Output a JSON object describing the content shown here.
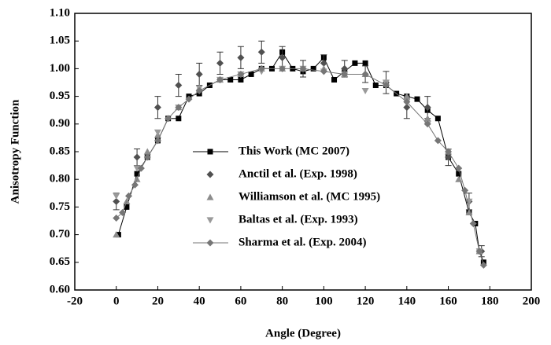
{
  "chart_data": {
    "type": "scatter",
    "x_label": "Angle (Degree)",
    "y_label": "Anisotropy Function",
    "xlim": [
      -20,
      200
    ],
    "xticks": [
      -20,
      0,
      20,
      40,
      60,
      80,
      100,
      120,
      140,
      160,
      180,
      200
    ],
    "ylim": [
      0.6,
      1.1
    ],
    "yticks": [
      {
        "value": 0.6,
        "label": "0.60"
      },
      {
        "value": 0.65,
        "label": "0.65"
      },
      {
        "value": 0.7,
        "label": "0.70"
      },
      {
        "value": 0.75,
        "label": "0.75"
      },
      {
        "value": 0.8,
        "label": "0.80"
      },
      {
        "value": 0.85,
        "label": "0.85"
      },
      {
        "value": 0.9,
        "label": "0.90"
      },
      {
        "value": 0.95,
        "label": "0.95"
      },
      {
        "value": 1.0,
        "label": "1.00"
      },
      {
        "value": 1.05,
        "label": "1.05"
      },
      {
        "value": 1.1,
        "label": "1.10"
      }
    ],
    "legend": "center",
    "series": [
      {
        "name": "This Work (MC 2007)",
        "color": "#000000",
        "marker": "square",
        "line": true,
        "x": [
          1,
          5,
          10,
          15,
          20,
          25,
          30,
          35,
          40,
          45,
          50,
          55,
          60,
          65,
          70,
          75,
          80,
          85,
          90,
          95,
          100,
          105,
          110,
          115,
          120,
          125,
          130,
          135,
          140,
          145,
          150,
          155,
          160,
          165,
          170,
          173,
          175,
          177
        ],
        "values": [
          0.7,
          0.75,
          0.81,
          0.84,
          0.87,
          0.91,
          0.91,
          0.95,
          0.955,
          0.97,
          0.98,
          0.98,
          0.98,
          0.99,
          1.0,
          1.0,
          1.03,
          1.0,
          0.995,
          1.0,
          1.02,
          0.98,
          0.995,
          1.01,
          1.01,
          0.97,
          0.97,
          0.955,
          0.95,
          0.945,
          0.925,
          0.91,
          0.84,
          0.81,
          0.74,
          0.72,
          0.67,
          0.65
        ]
      },
      {
        "name": "Anctil et al. (Exp. 1998)",
        "color": "#505050",
        "marker": "diamond",
        "line": false,
        "x": [
          0,
          10,
          20,
          30,
          40,
          50,
          60,
          70,
          80,
          90,
          100,
          110,
          120,
          130,
          140,
          150,
          160,
          170,
          176
        ],
        "values": [
          0.76,
          0.84,
          0.93,
          0.97,
          0.99,
          1.01,
          1.02,
          1.03,
          1.02,
          1.0,
          1.01,
          1.0,
          0.99,
          0.975,
          0.93,
          0.93,
          0.84,
          0.76,
          0.67
        ],
        "errors": [
          0.015,
          0.015,
          0.02,
          0.02,
          0.02,
          0.02,
          0.02,
          0.02,
          0.02,
          0.015,
          0.015,
          0.015,
          0.015,
          0.02,
          0.02,
          0.02,
          0.015,
          0.015,
          0.01
        ]
      },
      {
        "name": "Williamson et al. (MC 1995)",
        "color": "#8c8c8c",
        "marker": "triangle",
        "line": false,
        "x": [
          0,
          5,
          10,
          15,
          20,
          30,
          40,
          50,
          60,
          70,
          80,
          90,
          100,
          110,
          120,
          130,
          140,
          150,
          160,
          165,
          170,
          175
        ],
        "values": [
          0.7,
          0.76,
          0.8,
          0.85,
          0.88,
          0.93,
          0.965,
          0.98,
          0.99,
          1.0,
          1.0,
          1.0,
          1.0,
          0.99,
          0.99,
          0.975,
          0.95,
          0.91,
          0.85,
          0.8,
          0.74,
          0.67
        ]
      },
      {
        "name": "Baltas et al. (Exp. 1993)",
        "color": "#9a9a9a",
        "marker": "triangle-down",
        "line": false,
        "x": [
          0,
          10,
          20,
          30,
          40,
          50,
          60,
          70,
          80,
          90,
          100,
          110,
          120,
          130,
          140,
          150,
          160,
          170,
          175
        ],
        "values": [
          0.77,
          0.82,
          0.885,
          0.93,
          0.965,
          0.98,
          0.99,
          0.995,
          1.0,
          1.0,
          0.995,
          0.99,
          0.96,
          0.975,
          0.94,
          0.9,
          0.85,
          0.76,
          0.67
        ]
      },
      {
        "name": "Sharma et al. (Exp. 2004)",
        "color": "#767676",
        "marker": "diamond",
        "line": true,
        "x": [
          0,
          3,
          6,
          9,
          12,
          15,
          20,
          25,
          30,
          35,
          40,
          50,
          60,
          70,
          80,
          90,
          100,
          110,
          120,
          130,
          140,
          150,
          155,
          160,
          165,
          168,
          172,
          175,
          177
        ],
        "values": [
          0.73,
          0.74,
          0.77,
          0.79,
          0.82,
          0.84,
          0.87,
          0.91,
          0.93,
          0.945,
          0.96,
          0.98,
          0.99,
          1.0,
          1.0,
          1.0,
          0.995,
          0.99,
          0.99,
          0.97,
          0.94,
          0.9,
          0.87,
          0.85,
          0.82,
          0.78,
          0.72,
          0.67,
          0.645
        ]
      }
    ]
  }
}
